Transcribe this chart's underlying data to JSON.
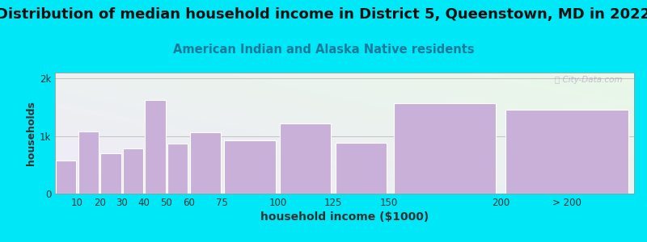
{
  "title": "Distribution of median household income in District 5, Queenstown, MD in 2022",
  "subtitle": "American Indian and Alaska Native residents",
  "xlabel": "household income ($1000)",
  "ylabel": "households",
  "categories": [
    "10",
    "20",
    "30",
    "40",
    "50",
    "60",
    "75",
    "100",
    "125",
    "150",
    "200",
    "> 200"
  ],
  "left_edges": [
    0,
    10,
    20,
    30,
    40,
    50,
    60,
    75,
    100,
    125,
    150,
    200
  ],
  "widths": [
    10,
    10,
    10,
    10,
    10,
    10,
    15,
    25,
    25,
    25,
    50,
    60
  ],
  "values": [
    580,
    1080,
    700,
    790,
    1620,
    870,
    1060,
    930,
    1220,
    880,
    1570,
    1460
  ],
  "bar_color": "#c8b0d8",
  "bar_edgecolor": "#ffffff",
  "yticks": [
    0,
    1000,
    2000
  ],
  "ytick_labels": [
    "0",
    "1k",
    "2k"
  ],
  "ylim": [
    0,
    2100
  ],
  "xlim": [
    0,
    260
  ],
  "bg_outer": "#00e8f8",
  "bg_plot_topleft": "#e8f8e8",
  "bg_plot_bottomright": "#f0eaf8",
  "title_fontsize": 13,
  "subtitle_fontsize": 10.5,
  "subtitle_color": "#1a7a9a",
  "watermark": "ⓘ City-Data.com",
  "title_color": "#111111",
  "xtick_labels": [
    "10",
    "20",
    "30",
    "40",
    "50",
    "60",
    "75",
    "100",
    "125",
    "150",
    "200",
    "> 200"
  ],
  "xtick_positions": [
    10,
    20,
    30,
    40,
    50,
    60,
    75,
    100,
    125,
    150,
    200,
    230
  ]
}
